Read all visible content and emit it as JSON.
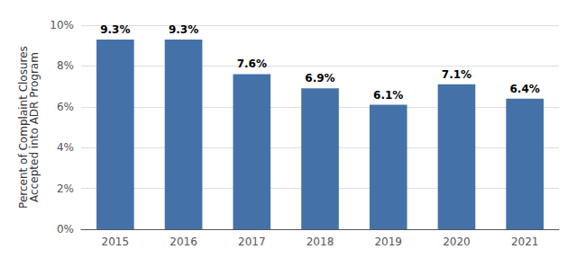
{
  "chart_data": {
    "type": "bar",
    "ylabel": "Percent of Complaint Closures\nAccepted into ADR Program",
    "categories": [
      "2015",
      "2016",
      "2017",
      "2018",
      "2019",
      "2020",
      "2021"
    ],
    "values": [
      9.3,
      9.3,
      7.6,
      6.9,
      6.1,
      7.1,
      6.4
    ],
    "value_labels": [
      "9.3%",
      "9.3%",
      "7.6%",
      "6.9%",
      "6.1%",
      "7.1%",
      "6.4%"
    ],
    "color": "#4472a8",
    "ylim": [
      0,
      10
    ],
    "yticks": [
      {
        "value": 0,
        "label": "0%"
      },
      {
        "value": 2,
        "label": "2%"
      },
      {
        "value": 4,
        "label": "4%"
      },
      {
        "value": 6,
        "label": "6%"
      },
      {
        "value": 8,
        "label": "8%"
      },
      {
        "value": 10,
        "label": "10%"
      }
    ],
    "grid": true,
    "data_labels": true
  }
}
